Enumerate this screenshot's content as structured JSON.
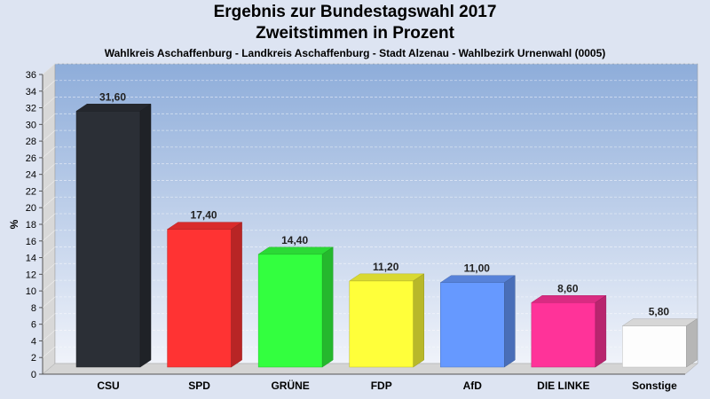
{
  "title": "Ergebnis zur Bundestagswahl 2017",
  "subtitle": "Zweitstimmen in Prozent",
  "description": "Wahlkreis Aschaffenburg - Landkreis Aschaffenburg - Stadt Alzenau - Wahlbezirk Urnenwahl (0005)",
  "chart_data": {
    "type": "bar",
    "title": "Ergebnis zur Bundestagswahl 2017",
    "subtitle": "Zweitstimmen in Prozent",
    "xlabel": "",
    "ylabel": "%",
    "ylim": [
      0,
      36
    ],
    "ytick_step": 2,
    "grid": true,
    "categories": [
      "CSU",
      "SPD",
      "GRÜNE",
      "FDP",
      "AfD",
      "DIE LINKE",
      "Sonstige"
    ],
    "values": [
      31.6,
      17.4,
      14.4,
      11.2,
      11.0,
      8.6,
      5.8
    ],
    "value_labels": [
      "31,60",
      "17,40",
      "14,40",
      "11,20",
      "11,00",
      "8,60",
      "5,80"
    ],
    "colors": [
      "#2b2f36",
      "#ff3333",
      "#33ff3f",
      "#ffff3a",
      "#6699ff",
      "#ff3399",
      "#fdfdfd"
    ]
  }
}
